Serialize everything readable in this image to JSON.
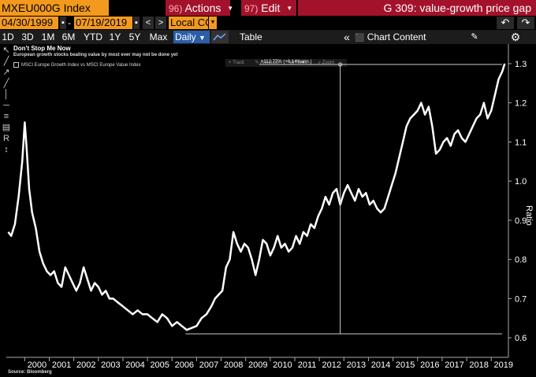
{
  "toolbar": {
    "ticker": "MXEU000G Index",
    "actions_num": "96)",
    "actions_label": "Actions",
    "edit_num": "97)",
    "edit_label": "Edit",
    "function_title": "G 309: value-growth price gap"
  },
  "dates": {
    "start": "04/30/1999",
    "end": "07/19/2019",
    "currency": "Local CCY"
  },
  "periods": [
    "1D",
    "3D",
    "1M",
    "6M",
    "YTD",
    "1Y",
    "5Y",
    "Max"
  ],
  "frequency": "Daily",
  "table_label": "Table",
  "chart_content_label": "Chart Content",
  "chart_title": "Don't Stop Me Now",
  "chart_subtitle": "European growth stocks beating value by most ever may not be done yet",
  "legend_item": "MSCI Europe Growth Index vs MSCI Europe Value Index",
  "annotation_menu": [
    "Track",
    "Annotate",
    "News",
    "Zoom"
  ],
  "annotation_label": "+112.77% (+6.14%ann.)",
  "source": "Source: Bloomberg",
  "colors": {
    "ticker_bg": "#f39a1e",
    "menu_bg": "#a3122a",
    "line": "#ffffff",
    "background": "#000000"
  },
  "chart_data": {
    "type": "line",
    "ylabel": "Ratio",
    "ylim": [
      0.55,
      1.35
    ],
    "yticks": [
      "0.6",
      "0.7",
      "0.8",
      "0.9",
      "1.0",
      "1.1",
      "1.2",
      "1.3"
    ],
    "xticks": [
      "2000",
      "2001",
      "2002",
      "2003",
      "2004",
      "2005",
      "2006",
      "2007",
      "2008",
      "2009",
      "2010",
      "2011",
      "2012",
      "2013",
      "2014",
      "2015",
      "2016",
      "2017",
      "2018",
      "2019"
    ],
    "series": [
      {
        "x": [
          1999.33,
          1999.45,
          1999.6,
          1999.75,
          1999.9,
          2000.0,
          2000.08,
          2000.18,
          2000.3,
          2000.45,
          2000.6,
          2000.75,
          2000.9,
          2001.05,
          2001.2,
          2001.35,
          2001.5,
          2001.65,
          2001.8,
          2001.95,
          2002.1,
          2002.25,
          2002.4,
          2002.55,
          2002.7,
          2002.85,
          2003.0,
          2003.15,
          2003.3,
          2003.45,
          2003.6,
          2003.8,
          2004.0,
          2004.2,
          2004.4,
          2004.6,
          2004.8,
          2005.0,
          2005.2,
          2005.4,
          2005.6,
          2005.8,
          2006.0,
          2006.2,
          2006.4,
          2006.6,
          2006.8,
          2007.0,
          2007.2,
          2007.4,
          2007.6,
          2007.75,
          2007.9,
          2008.05,
          2008.2,
          2008.35,
          2008.5,
          2008.65,
          2008.8,
          2008.95,
          2009.1,
          2009.25,
          2009.4,
          2009.55,
          2009.7,
          2009.85,
          2010.0,
          2010.15,
          2010.3,
          2010.45,
          2010.6,
          2010.75,
          2010.9,
          2011.05,
          2011.2,
          2011.35,
          2011.5,
          2011.65,
          2011.8,
          2011.95,
          2012.1,
          2012.25,
          2012.4,
          2012.55,
          2012.7,
          2012.85,
          2013.0,
          2013.15,
          2013.3,
          2013.45,
          2013.6,
          2013.75,
          2013.9,
          2014.05,
          2014.2,
          2014.35,
          2014.5,
          2014.65,
          2014.8,
          2014.95,
          2015.1,
          2015.25,
          2015.4,
          2015.55,
          2015.7,
          2015.85,
          2016.0,
          2016.15,
          2016.3,
          2016.45,
          2016.6,
          2016.75,
          2016.9,
          2017.05,
          2017.2,
          2017.35,
          2017.5,
          2017.65,
          2017.8,
          2017.95,
          2018.1,
          2018.25,
          2018.4,
          2018.55,
          2018.7,
          2018.85,
          2019.0,
          2019.15,
          2019.3,
          2019.45,
          2019.55
        ],
        "y": [
          0.87,
          0.86,
          0.89,
          0.96,
          1.05,
          1.15,
          1.08,
          0.98,
          0.92,
          0.88,
          0.82,
          0.79,
          0.77,
          0.76,
          0.77,
          0.74,
          0.73,
          0.78,
          0.76,
          0.74,
          0.72,
          0.74,
          0.78,
          0.75,
          0.72,
          0.74,
          0.73,
          0.71,
          0.72,
          0.7,
          0.7,
          0.69,
          0.68,
          0.67,
          0.66,
          0.67,
          0.66,
          0.66,
          0.65,
          0.64,
          0.66,
          0.65,
          0.63,
          0.64,
          0.63,
          0.62,
          0.625,
          0.63,
          0.65,
          0.66,
          0.68,
          0.7,
          0.71,
          0.72,
          0.78,
          0.8,
          0.87,
          0.84,
          0.82,
          0.84,
          0.83,
          0.8,
          0.76,
          0.8,
          0.85,
          0.84,
          0.81,
          0.83,
          0.86,
          0.83,
          0.84,
          0.82,
          0.83,
          0.86,
          0.84,
          0.87,
          0.86,
          0.89,
          0.88,
          0.91,
          0.93,
          0.96,
          0.94,
          0.97,
          0.98,
          0.94,
          0.97,
          0.99,
          0.97,
          0.95,
          0.98,
          0.96,
          0.97,
          0.94,
          0.95,
          0.93,
          0.92,
          0.93,
          0.96,
          0.99,
          1.02,
          1.06,
          1.1,
          1.14,
          1.16,
          1.17,
          1.18,
          1.2,
          1.17,
          1.19,
          1.14,
          1.07,
          1.08,
          1.1,
          1.11,
          1.09,
          1.12,
          1.13,
          1.11,
          1.1,
          1.12,
          1.14,
          1.16,
          1.17,
          1.2,
          1.16,
          1.18,
          1.22,
          1.26,
          1.28,
          1.3
        ]
      }
    ],
    "annotation_hline": 0.61
  }
}
